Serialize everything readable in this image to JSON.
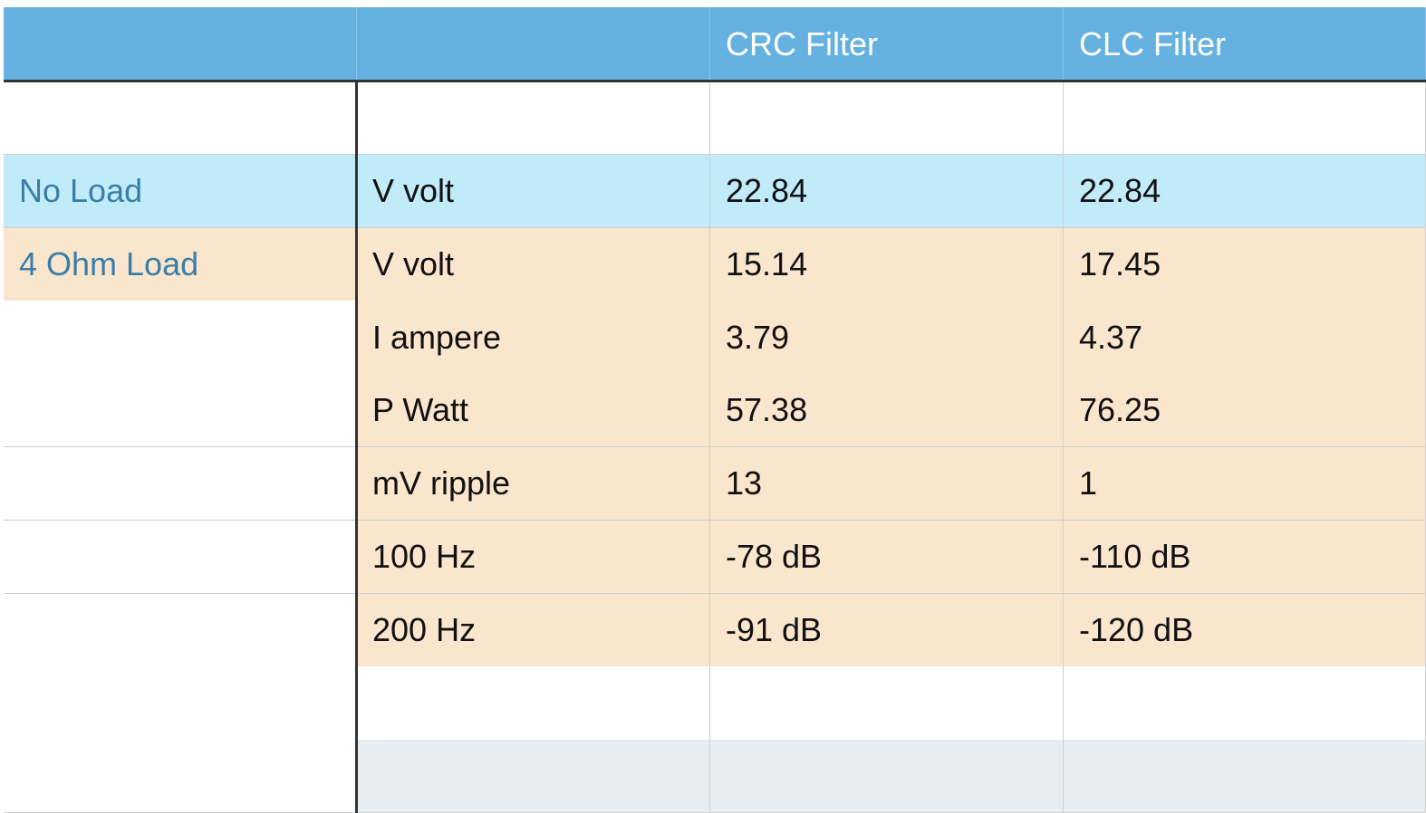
{
  "table": {
    "header": [
      null,
      null,
      "CRC Filter",
      "CLC Filter"
    ],
    "rows": [
      [
        null,
        null,
        null,
        null
      ],
      [
        "No Load",
        "V volt",
        22.84,
        22.84
      ],
      [
        "4 Ohm Load",
        "V volt",
        15.14,
        17.45
      ],
      [
        null,
        "I ampere",
        3.79,
        4.37
      ],
      [
        null,
        "P Watt",
        57.38,
        76.25
      ],
      [
        null,
        "mV ripple",
        13,
        1
      ],
      [
        null,
        "100 Hz",
        "-78 dB",
        "-110 dB"
      ],
      [
        null,
        "200 Hz",
        "-91 dB",
        "-120 dB"
      ],
      [
        null,
        null,
        null,
        null
      ],
      [
        null,
        null,
        null,
        null
      ]
    ]
  }
}
